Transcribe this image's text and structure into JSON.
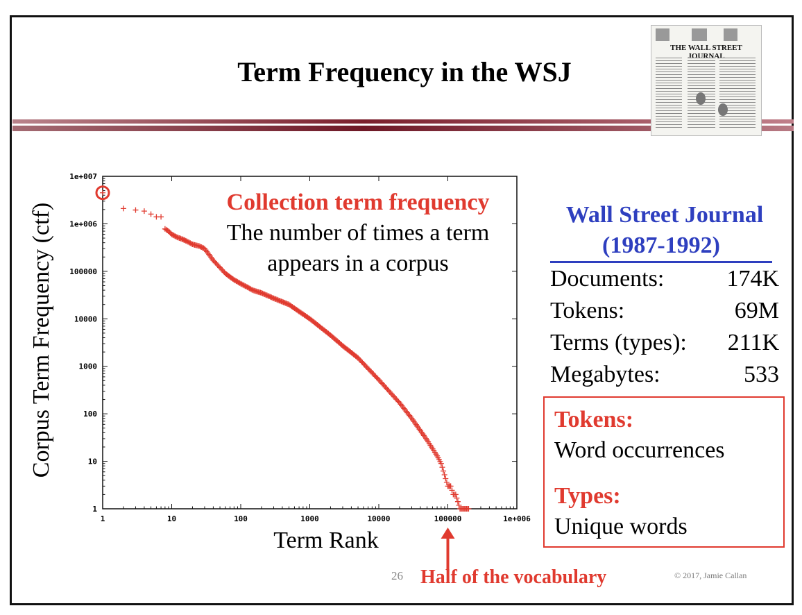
{
  "slide": {
    "title": "Term Frequency in the WSJ",
    "page_number": "26",
    "copyright": "© 2017, Jamie Callan",
    "newspaper_masthead": "THE WALL STREET JOURNAL"
  },
  "annotation": {
    "heading": "Collection term frequency",
    "line1": "The number of times a term",
    "line2": "appears in a corpus"
  },
  "stats": {
    "heading_line1": "Wall Street Journal",
    "heading_line2": "(1987-1992)",
    "rows": [
      {
        "label": "Documents:",
        "value": "174K"
      },
      {
        "label": "Tokens:",
        "value": "69M"
      },
      {
        "label": "Terms (types):",
        "value": "211K"
      },
      {
        "label": "Megabytes:",
        "value": "533"
      }
    ]
  },
  "definitions": {
    "tokens_label": "Tokens:",
    "tokens_desc": "Word occurrences",
    "types_label": "Types:",
    "types_desc": "Unique words"
  },
  "callout": {
    "label": "Half of the vocabulary"
  },
  "colors": {
    "accent": "#e03a2f",
    "heading_blue": "#2e3fbf",
    "title_bar": "#7a1f2c"
  },
  "chart_data": {
    "type": "scatter",
    "xlabel": "Term Rank",
    "ylabel": "Corpus Term Frequency (ctf)",
    "x_scale": "log",
    "y_scale": "log",
    "xlim": [
      1,
      1000000
    ],
    "ylim": [
      1,
      10000000
    ],
    "x_ticks": [
      "1",
      "10",
      "100",
      "1000",
      "10000",
      "100000",
      "1e+006"
    ],
    "y_ticks": [
      "1",
      "10",
      "100",
      "1000",
      "10000",
      "100000",
      "1e+006",
      "1e+007"
    ],
    "grid": false,
    "marker": "+",
    "series": [
      {
        "x": [
          1,
          2,
          3,
          4,
          5,
          6,
          7,
          8,
          9,
          10,
          12,
          14,
          16,
          20,
          25,
          30,
          40,
          50,
          60,
          80,
          100,
          150,
          200,
          300,
          500,
          1000,
          2000,
          3000,
          5000,
          10000,
          20000,
          30000,
          50000,
          70000,
          80000,
          100000,
          110000,
          120000,
          130000,
          150000,
          200000
        ],
        "y": [
          4500000,
          2100000,
          1950000,
          1850000,
          1600000,
          1400000,
          1400000,
          780000,
          700000,
          600000,
          520000,
          480000,
          440000,
          370000,
          340000,
          300000,
          170000,
          120000,
          90000,
          66000,
          55000,
          40000,
          35000,
          27000,
          20000,
          10000,
          4500,
          2700,
          1500,
          520,
          170,
          80,
          28,
          13,
          9,
          3,
          3,
          2,
          2,
          1,
          1
        ]
      }
    ],
    "annotations": [
      {
        "text": "Collection term frequency",
        "points_to_x": 1,
        "points_to_y": 4500000
      },
      {
        "text": "Half of the vocabulary",
        "points_to_x": 100000,
        "points_to_y": 1
      }
    ]
  }
}
